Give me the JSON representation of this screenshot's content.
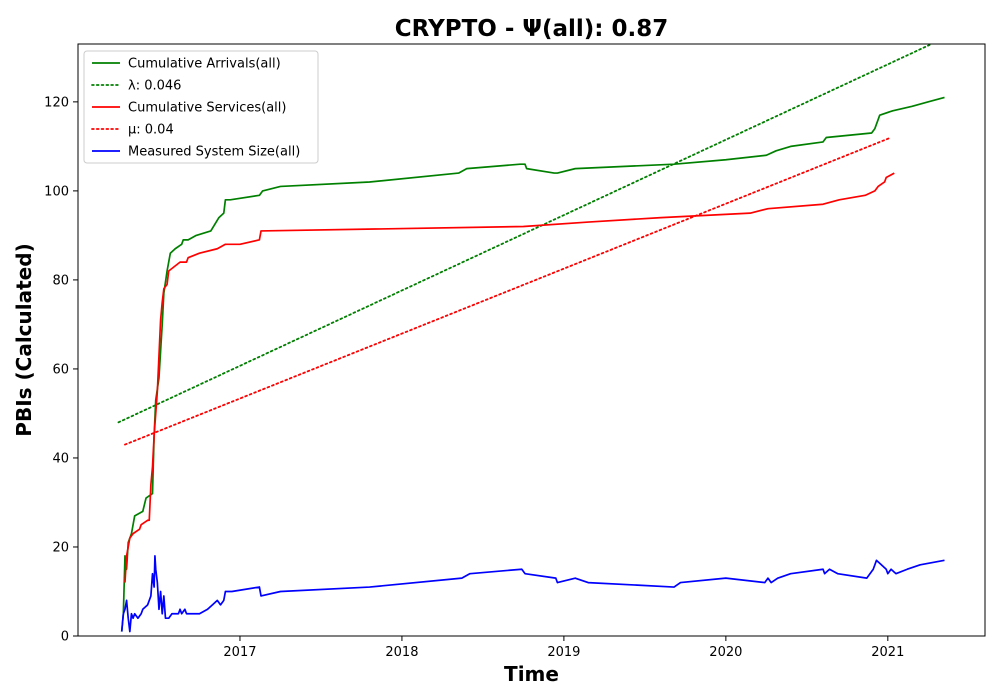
{
  "chart_data": {
    "type": "line",
    "title": "CRYPTO -  Ψ(all): 0.87",
    "xlabel": "Time",
    "ylabel": "PBIs (Calculated)",
    "xlim": [
      2016.0,
      2021.6
    ],
    "ylim": [
      0,
      133
    ],
    "x_ticks": [
      2017,
      2018,
      2019,
      2020,
      2021
    ],
    "x_tick_labels": [
      "2017",
      "2018",
      "2019",
      "2020",
      "2021"
    ],
    "y_ticks": [
      0,
      20,
      40,
      60,
      80,
      100,
      120
    ],
    "y_tick_labels": [
      "0",
      "20",
      "40",
      "60",
      "80",
      "100",
      "120"
    ],
    "grid": false,
    "legend_position": "upper-left",
    "series": [
      {
        "name": "Cumulative Arrivals(all)",
        "color": "#008000",
        "style": "solid",
        "points": [
          [
            2016.27,
            1
          ],
          [
            2016.28,
            5
          ],
          [
            2016.29,
            18
          ],
          [
            2016.3,
            15
          ],
          [
            2016.31,
            21
          ],
          [
            2016.33,
            23
          ],
          [
            2016.35,
            27
          ],
          [
            2016.4,
            28
          ],
          [
            2016.42,
            31
          ],
          [
            2016.46,
            32
          ],
          [
            2016.47,
            45
          ],
          [
            2016.48,
            53
          ],
          [
            2016.5,
            58
          ],
          [
            2016.51,
            64
          ],
          [
            2016.52,
            70
          ],
          [
            2016.53,
            77
          ],
          [
            2016.55,
            82
          ],
          [
            2016.57,
            86
          ],
          [
            2016.6,
            87
          ],
          [
            2016.64,
            88
          ],
          [
            2016.65,
            89
          ],
          [
            2016.68,
            89
          ],
          [
            2016.73,
            90
          ],
          [
            2016.82,
            91
          ],
          [
            2016.87,
            94
          ],
          [
            2016.9,
            95
          ],
          [
            2016.91,
            98
          ],
          [
            2016.94,
            98
          ],
          [
            2017.12,
            99
          ],
          [
            2017.14,
            100
          ],
          [
            2017.25,
            101
          ],
          [
            2017.8,
            102
          ],
          [
            2018.35,
            104
          ],
          [
            2018.4,
            105
          ],
          [
            2018.73,
            106
          ],
          [
            2018.76,
            106
          ],
          [
            2018.77,
            105
          ],
          [
            2018.94,
            104
          ],
          [
            2018.96,
            104
          ],
          [
            2019.07,
            105
          ],
          [
            2019.68,
            106
          ],
          [
            2020.0,
            107
          ],
          [
            2020.25,
            108
          ],
          [
            2020.31,
            109
          ],
          [
            2020.4,
            110
          ],
          [
            2020.6,
            111
          ],
          [
            2020.62,
            112
          ],
          [
            2020.9,
            113
          ],
          [
            2020.92,
            114
          ],
          [
            2020.95,
            117
          ],
          [
            2021.03,
            118
          ],
          [
            2021.15,
            119
          ],
          [
            2021.25,
            120
          ],
          [
            2021.35,
            121
          ]
        ]
      },
      {
        "name": "λ: 0.046",
        "color": "#008000",
        "style": "dotted",
        "points": [
          [
            2016.25,
            48
          ],
          [
            2021.27,
            133
          ]
        ]
      },
      {
        "name": "Cumulative Services(all)",
        "color": "#ff0000",
        "style": "solid",
        "points": [
          [
            2016.29,
            12
          ],
          [
            2016.3,
            18
          ],
          [
            2016.31,
            20
          ],
          [
            2016.32,
            22
          ],
          [
            2016.34,
            23
          ],
          [
            2016.38,
            24
          ],
          [
            2016.39,
            25
          ],
          [
            2016.43,
            26
          ],
          [
            2016.44,
            26
          ],
          [
            2016.45,
            34
          ],
          [
            2016.46,
            38
          ],
          [
            2016.47,
            45
          ],
          [
            2016.48,
            50
          ],
          [
            2016.49,
            55
          ],
          [
            2016.5,
            63
          ],
          [
            2016.51,
            71
          ],
          [
            2016.52,
            75
          ],
          [
            2016.53,
            78
          ],
          [
            2016.55,
            79
          ],
          [
            2016.56,
            82
          ],
          [
            2016.63,
            84
          ],
          [
            2016.67,
            84
          ],
          [
            2016.68,
            85
          ],
          [
            2016.75,
            86
          ],
          [
            2016.86,
            87
          ],
          [
            2016.91,
            88
          ],
          [
            2017.0,
            88
          ],
          [
            2017.12,
            89
          ],
          [
            2017.13,
            91
          ],
          [
            2018.75,
            92
          ],
          [
            2019.15,
            93
          ],
          [
            2019.6,
            94
          ],
          [
            2020.15,
            95
          ],
          [
            2020.26,
            96
          ],
          [
            2020.6,
            97
          ],
          [
            2020.7,
            98
          ],
          [
            2020.86,
            99
          ],
          [
            2020.92,
            100
          ],
          [
            2020.94,
            101
          ],
          [
            2020.98,
            102
          ],
          [
            2020.99,
            103
          ],
          [
            2021.04,
            104
          ]
        ]
      },
      {
        "name": "μ: 0.04",
        "color": "#ff0000",
        "style": "dotted",
        "points": [
          [
            2016.29,
            43
          ],
          [
            2021.02,
            112
          ]
        ]
      },
      {
        "name": "Measured System Size(all)",
        "color": "#0000ff",
        "style": "solid",
        "points": [
          [
            2016.27,
            1
          ],
          [
            2016.28,
            5
          ],
          [
            2016.29,
            6
          ],
          [
            2016.3,
            8
          ],
          [
            2016.31,
            4
          ],
          [
            2016.32,
            1
          ],
          [
            2016.33,
            5
          ],
          [
            2016.34,
            4
          ],
          [
            2016.35,
            5
          ],
          [
            2016.37,
            4
          ],
          [
            2016.39,
            5
          ],
          [
            2016.4,
            6
          ],
          [
            2016.43,
            7
          ],
          [
            2016.45,
            9
          ],
          [
            2016.46,
            14
          ],
          [
            2016.47,
            11
          ],
          [
            2016.475,
            18
          ],
          [
            2016.48,
            15
          ],
          [
            2016.49,
            12
          ],
          [
            2016.5,
            6
          ],
          [
            2016.51,
            10
          ],
          [
            2016.52,
            5
          ],
          [
            2016.53,
            9
          ],
          [
            2016.54,
            4
          ],
          [
            2016.56,
            4
          ],
          [
            2016.58,
            5
          ],
          [
            2016.6,
            5
          ],
          [
            2016.62,
            5
          ],
          [
            2016.63,
            6
          ],
          [
            2016.64,
            5
          ],
          [
            2016.66,
            6
          ],
          [
            2016.67,
            5
          ],
          [
            2016.7,
            5
          ],
          [
            2016.75,
            5
          ],
          [
            2016.8,
            6
          ],
          [
            2016.83,
            7
          ],
          [
            2016.86,
            8
          ],
          [
            2016.88,
            7
          ],
          [
            2016.9,
            8
          ],
          [
            2016.91,
            10
          ],
          [
            2016.95,
            10
          ],
          [
            2017.12,
            11
          ],
          [
            2017.13,
            9
          ],
          [
            2017.25,
            10
          ],
          [
            2017.8,
            11
          ],
          [
            2018.37,
            13
          ],
          [
            2018.42,
            14
          ],
          [
            2018.74,
            15
          ],
          [
            2018.76,
            14
          ],
          [
            2018.95,
            13
          ],
          [
            2018.96,
            12
          ],
          [
            2019.07,
            13
          ],
          [
            2019.15,
            12
          ],
          [
            2019.68,
            11
          ],
          [
            2019.72,
            12
          ],
          [
            2020.0,
            13
          ],
          [
            2020.24,
            12
          ],
          [
            2020.26,
            13
          ],
          [
            2020.28,
            12
          ],
          [
            2020.32,
            13
          ],
          [
            2020.4,
            14
          ],
          [
            2020.6,
            15
          ],
          [
            2020.61,
            14
          ],
          [
            2020.64,
            15
          ],
          [
            2020.69,
            14
          ],
          [
            2020.87,
            13
          ],
          [
            2020.91,
            15
          ],
          [
            2020.93,
            17
          ],
          [
            2020.96,
            16
          ],
          [
            2020.99,
            15
          ],
          [
            2021.0,
            14
          ],
          [
            2021.02,
            15
          ],
          [
            2021.05,
            14
          ],
          [
            2021.12,
            15
          ],
          [
            2021.2,
            16
          ],
          [
            2021.35,
            17
          ]
        ]
      }
    ]
  }
}
